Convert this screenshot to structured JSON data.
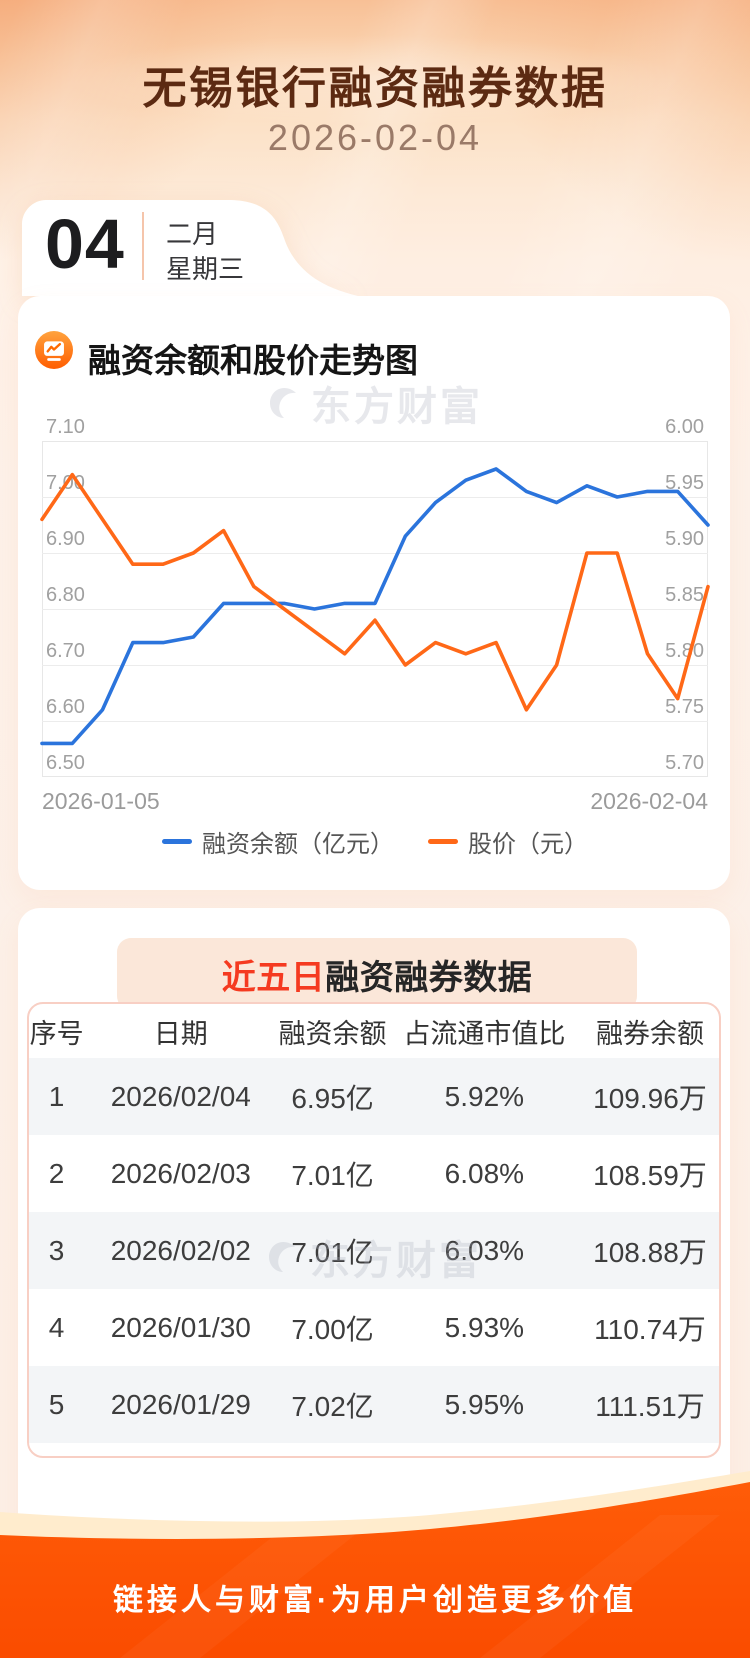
{
  "header": {
    "title": "无锡银行融资融券数据",
    "date": "2026-02-04"
  },
  "date_card": {
    "day": "04",
    "month": "二月",
    "weekday": "星期三"
  },
  "chart_card": {
    "title": "融资余额和股价走势图"
  },
  "watermark": {
    "text": "东方财富"
  },
  "chart_data": {
    "type": "line",
    "x_start_label": "2026-01-05",
    "x_end_label": "2026-02-04",
    "left_axis": {
      "min": 6.5,
      "max": 7.1,
      "ticks": [
        "7.10",
        "7.00",
        "6.90",
        "6.80",
        "6.70",
        "6.60",
        "6.50"
      ]
    },
    "right_axis": {
      "min": 5.7,
      "max": 6.0,
      "ticks": [
        "6.00",
        "5.95",
        "5.90",
        "5.85",
        "5.80",
        "5.75",
        "5.70"
      ]
    },
    "series": [
      {
        "name": "融资余额（亿元）",
        "axis": "left",
        "color": "#2b74dc",
        "values": [
          6.56,
          6.56,
          6.62,
          6.74,
          6.74,
          6.75,
          6.81,
          6.81,
          6.81,
          6.8,
          6.81,
          6.81,
          6.93,
          6.99,
          7.03,
          7.05,
          7.01,
          6.99,
          7.02,
          7.0,
          7.01,
          7.01,
          6.95
        ]
      },
      {
        "name": "股价（元）",
        "axis": "right",
        "color": "#ff6817",
        "values": [
          5.93,
          5.97,
          5.93,
          5.89,
          5.89,
          5.9,
          5.92,
          5.87,
          5.85,
          5.83,
          5.81,
          5.84,
          5.8,
          5.82,
          5.81,
          5.82,
          5.76,
          5.8,
          5.9,
          5.9,
          5.81,
          5.77,
          5.87
        ]
      }
    ],
    "grid": true,
    "legend_position": "bottom"
  },
  "table_card": {
    "badge_highlight": "近五日",
    "badge_rest": "融资融券数据",
    "columns": [
      "序号",
      "日期",
      "融资余额",
      "占流通市值比",
      "融券余额"
    ],
    "rows": [
      [
        "1",
        "2026/02/04",
        "6.95亿",
        "5.92%",
        "109.96万"
      ],
      [
        "2",
        "2026/02/03",
        "7.01亿",
        "6.08%",
        "108.59万"
      ],
      [
        "3",
        "2026/02/02",
        "7.01亿",
        "6.03%",
        "108.88万"
      ],
      [
        "4",
        "2026/01/30",
        "7.00亿",
        "5.93%",
        "110.74万"
      ],
      [
        "5",
        "2026/01/29",
        "7.02亿",
        "5.95%",
        "111.51万"
      ]
    ]
  },
  "footer": {
    "slogan": "链接人与财富·为用户创造更多价值"
  },
  "colors": {
    "line_blue": "#2b74dc",
    "line_orange": "#ff6817",
    "footer_orange": "#fb5303",
    "title_brown": "#5c2a12",
    "badge_red": "#f53a20"
  }
}
